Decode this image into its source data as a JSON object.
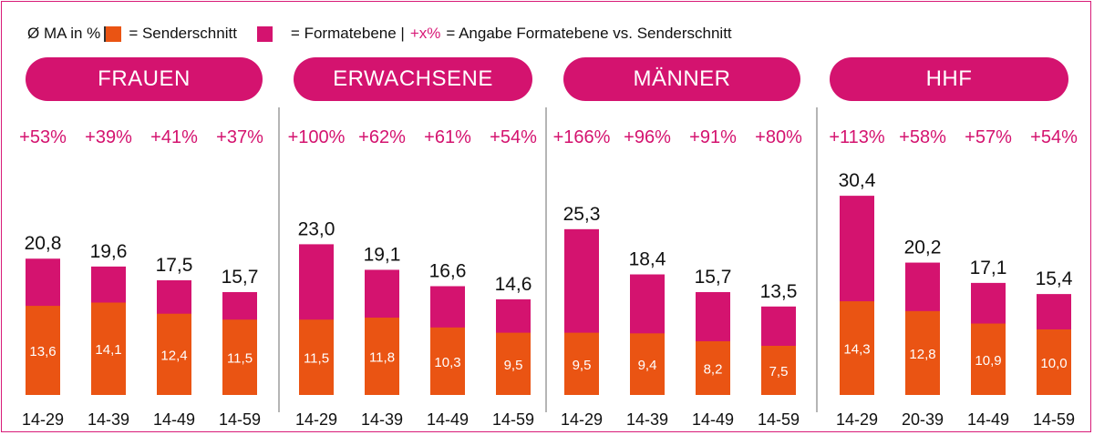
{
  "legend": {
    "avg_label": "Ø MA in %",
    "sender_label": "= Senderschnitt",
    "format_label": "= Formatebene |",
    "plus_label": "+x%",
    "plus_desc": "= Angabe Formatebene vs. Senderschnitt"
  },
  "colors": {
    "sender": "#ea5413",
    "format": "#d4136f",
    "border": "#d81b78",
    "divider": "#b5b5b5"
  },
  "chart_data": [
    {
      "type": "bar",
      "title": "FRAUEN",
      "categories": [
        "14-29",
        "14-39",
        "14-49",
        "14-59"
      ],
      "series": [
        {
          "name": "Senderschnitt",
          "values": [
            13.6,
            14.1,
            12.4,
            11.5
          ]
        },
        {
          "name": "Formatebene",
          "values": [
            20.8,
            19.6,
            17.5,
            15.7
          ]
        }
      ],
      "total_labels": [
        "20,8",
        "19,6",
        "17,5",
        "15,7"
      ],
      "inner_labels": [
        "13,6",
        "14,1",
        "12,4",
        "11,5"
      ],
      "pct_labels": [
        "+53%",
        "+39%",
        "+41%",
        "+37%"
      ]
    },
    {
      "type": "bar",
      "title": "ERWACHSENE",
      "categories": [
        "14-29",
        "14-39",
        "14-49",
        "14-59"
      ],
      "series": [
        {
          "name": "Senderschnitt",
          "values": [
            11.5,
            11.8,
            10.3,
            9.5
          ]
        },
        {
          "name": "Formatebene",
          "values": [
            23.0,
            19.1,
            16.6,
            14.6
          ]
        }
      ],
      "total_labels": [
        "23,0",
        "19,1",
        "16,6",
        "14,6"
      ],
      "inner_labels": [
        "11,5",
        "11,8",
        "10,3",
        "9,5"
      ],
      "pct_labels": [
        "+100%",
        "+62%",
        "+61%",
        "+54%"
      ]
    },
    {
      "type": "bar",
      "title": "MÄNNER",
      "categories": [
        "14-29",
        "14-39",
        "14-49",
        "14-59"
      ],
      "series": [
        {
          "name": "Senderschnitt",
          "values": [
            9.5,
            9.4,
            8.2,
            7.5
          ]
        },
        {
          "name": "Formatebene",
          "values": [
            25.3,
            18.4,
            15.7,
            13.5
          ]
        }
      ],
      "total_labels": [
        "25,3",
        "18,4",
        "15,7",
        "13,5"
      ],
      "inner_labels": [
        "9,5",
        "9,4",
        "8,2",
        "7,5"
      ],
      "pct_labels": [
        "+166%",
        "+96%",
        "+91%",
        "+80%"
      ]
    },
    {
      "type": "bar",
      "title": "HHF",
      "categories": [
        "14-29",
        "20-39",
        "14-49",
        "14-59"
      ],
      "series": [
        {
          "name": "Senderschnitt",
          "values": [
            14.3,
            12.8,
            10.9,
            10.0
          ]
        },
        {
          "name": "Formatebene",
          "values": [
            30.4,
            20.2,
            17.1,
            15.4
          ]
        }
      ],
      "total_labels": [
        "30,4",
        "20,2",
        "17,1",
        "15,4"
      ],
      "inner_labels": [
        "14,3",
        "12,8",
        "10,9",
        "10,0"
      ],
      "pct_labels": [
        "+113%",
        "+58%",
        "+57%",
        "+54%"
      ]
    }
  ]
}
